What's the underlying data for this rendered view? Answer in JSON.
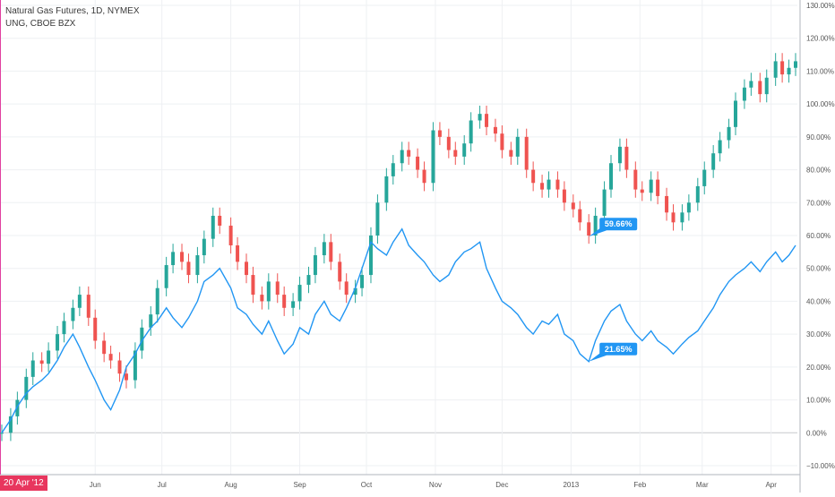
{
  "legend": {
    "line1": "Natural Gas Futures, 1D, NYMEX",
    "line2": "UNG, CBOE BZX"
  },
  "date_badge": "20 Apr '12",
  "chart_data": {
    "type": "line",
    "title": "Natural Gas Futures, 1D, NYMEX",
    "y_unit": "%",
    "ylim": [
      -10,
      130
    ],
    "y_ticks": [
      "130.00%",
      "120.00%",
      "110.00%",
      "100.00%",
      "90.00%",
      "80.00%",
      "70.00%",
      "60.00%",
      "50.00%",
      "40.00%",
      "30.00%",
      "20.00%",
      "10.00%",
      "0.00%",
      "−10.00%"
    ],
    "y_tick_values": [
      130,
      120,
      110,
      100,
      90,
      80,
      70,
      60,
      50,
      40,
      30,
      20,
      10,
      0,
      -10
    ],
    "x_tick_labels": [
      {
        "label": "Jun",
        "x": "2012-06-01"
      },
      {
        "label": "Jul",
        "x": "2012-07-01"
      },
      {
        "label": "Aug",
        "x": "2012-08-01"
      },
      {
        "label": "Sep",
        "x": "2012-09-01"
      },
      {
        "label": "Oct",
        "x": "2012-10-01"
      },
      {
        "label": "Nov",
        "x": "2012-11-01"
      },
      {
        "label": "Dec",
        "x": "2012-12-01"
      },
      {
        "label": "2013",
        "x": "2013-01-01"
      },
      {
        "label": "Feb",
        "x": "2013-02-01"
      },
      {
        "label": "Mar",
        "x": "2013-03-01"
      },
      {
        "label": "Apr",
        "x": "2013-04-01"
      }
    ],
    "xlim": [
      "2012-04-20",
      "2013-04-12"
    ],
    "grid": true,
    "colors": {
      "up": "#26a69a",
      "down": "#ef5350",
      "line": "#2196f3",
      "label_bg": "#2196f3",
      "grid": "#eef0f3",
      "zero": "#c7c9cd",
      "axis_text": "#555555",
      "start_marker": "#e040a0"
    },
    "series": [
      {
        "type": "candlestick",
        "close": [
          [
            "2012-04-20",
            0
          ],
          [
            "2012-04-24",
            5
          ],
          [
            "2012-04-27",
            10
          ],
          [
            "2012-05-01",
            17
          ],
          [
            "2012-05-04",
            22
          ],
          [
            "2012-05-08",
            21
          ],
          [
            "2012-05-11",
            25
          ],
          [
            "2012-05-15",
            30
          ],
          [
            "2012-05-18",
            34
          ],
          [
            "2012-05-22",
            38
          ],
          [
            "2012-05-25",
            42
          ],
          [
            "2012-05-29",
            35
          ],
          [
            "2012-06-01",
            28
          ],
          [
            "2012-06-05",
            24
          ],
          [
            "2012-06-08",
            22
          ],
          [
            "2012-06-12",
            18
          ],
          [
            "2012-06-15",
            16
          ],
          [
            "2012-06-19",
            25
          ],
          [
            "2012-06-22",
            32
          ],
          [
            "2012-06-26",
            36
          ],
          [
            "2012-06-29",
            44
          ],
          [
            "2012-07-03",
            51
          ],
          [
            "2012-07-06",
            55
          ],
          [
            "2012-07-10",
            52
          ],
          [
            "2012-07-13",
            48
          ],
          [
            "2012-07-17",
            54
          ],
          [
            "2012-07-20",
            59
          ],
          [
            "2012-07-24",
            66
          ],
          [
            "2012-07-27",
            63
          ],
          [
            "2012-08-01",
            57
          ],
          [
            "2012-08-04",
            52
          ],
          [
            "2012-08-08",
            48
          ],
          [
            "2012-08-11",
            42
          ],
          [
            "2012-08-15",
            40
          ],
          [
            "2012-08-18",
            46
          ],
          [
            "2012-08-22",
            42
          ],
          [
            "2012-08-25",
            38
          ],
          [
            "2012-08-29",
            40
          ],
          [
            "2012-09-01",
            45
          ],
          [
            "2012-09-05",
            48
          ],
          [
            "2012-09-08",
            54
          ],
          [
            "2012-09-12",
            58
          ],
          [
            "2012-09-15",
            52
          ],
          [
            "2012-09-19",
            46
          ],
          [
            "2012-09-22",
            42
          ],
          [
            "2012-09-26",
            44
          ],
          [
            "2012-09-29",
            48
          ],
          [
            "2012-10-03",
            60
          ],
          [
            "2012-10-06",
            70
          ],
          [
            "2012-10-10",
            78
          ],
          [
            "2012-10-13",
            82
          ],
          [
            "2012-10-17",
            86
          ],
          [
            "2012-10-20",
            84
          ],
          [
            "2012-10-24",
            80
          ],
          [
            "2012-10-27",
            76
          ],
          [
            "2012-10-31",
            92
          ],
          [
            "2012-11-03",
            90
          ],
          [
            "2012-11-07",
            86
          ],
          [
            "2012-11-10",
            84
          ],
          [
            "2012-11-14",
            88
          ],
          [
            "2012-11-17",
            95
          ],
          [
            "2012-11-21",
            97
          ],
          [
            "2012-11-24",
            93
          ],
          [
            "2012-11-28",
            91
          ],
          [
            "2012-12-01",
            86
          ],
          [
            "2012-12-05",
            84
          ],
          [
            "2012-12-08",
            90
          ],
          [
            "2012-12-12",
            80
          ],
          [
            "2012-12-15",
            76
          ],
          [
            "2012-12-19",
            74
          ],
          [
            "2012-12-22",
            77
          ],
          [
            "2012-12-26",
            74
          ],
          [
            "2012-12-29",
            70
          ],
          [
            "2013-01-02",
            68
          ],
          [
            "2013-01-05",
            64
          ],
          [
            "2013-01-09",
            60
          ],
          [
            "2013-01-12",
            66
          ],
          [
            "2013-01-16",
            74
          ],
          [
            "2013-01-19",
            82
          ],
          [
            "2013-01-23",
            87
          ],
          [
            "2013-01-26",
            80
          ],
          [
            "2013-01-30",
            74
          ],
          [
            "2013-02-02",
            73
          ],
          [
            "2013-02-06",
            77
          ],
          [
            "2013-02-09",
            72
          ],
          [
            "2013-02-13",
            67
          ],
          [
            "2013-02-16",
            64
          ],
          [
            "2013-02-20",
            67
          ],
          [
            "2013-02-23",
            70
          ],
          [
            "2013-02-27",
            75
          ],
          [
            "2013-03-02",
            80
          ],
          [
            "2013-03-06",
            85
          ],
          [
            "2013-03-09",
            89
          ],
          [
            "2013-03-13",
            93
          ],
          [
            "2013-03-16",
            101
          ],
          [
            "2013-03-20",
            105
          ],
          [
            "2013-03-23",
            107
          ],
          [
            "2013-03-27",
            103
          ],
          [
            "2013-03-30",
            108
          ],
          [
            "2013-04-03",
            113
          ],
          [
            "2013-04-06",
            109
          ],
          [
            "2013-04-09",
            111
          ],
          [
            "2013-04-12",
            113
          ]
        ]
      },
      {
        "type": "line",
        "values": [
          [
            "2012-04-20",
            0
          ],
          [
            "2012-04-24",
            4
          ],
          [
            "2012-04-27",
            8
          ],
          [
            "2012-05-01",
            12
          ],
          [
            "2012-05-04",
            14
          ],
          [
            "2012-05-08",
            16
          ],
          [
            "2012-05-11",
            18
          ],
          [
            "2012-05-15",
            22
          ],
          [
            "2012-05-18",
            26
          ],
          [
            "2012-05-22",
            30
          ],
          [
            "2012-05-25",
            26
          ],
          [
            "2012-05-29",
            20
          ],
          [
            "2012-06-01",
            16
          ],
          [
            "2012-06-05",
            10
          ],
          [
            "2012-06-08",
            7
          ],
          [
            "2012-06-12",
            13
          ],
          [
            "2012-06-15",
            20
          ],
          [
            "2012-06-19",
            24
          ],
          [
            "2012-06-22",
            28
          ],
          [
            "2012-06-26",
            32
          ],
          [
            "2012-06-29",
            34
          ],
          [
            "2012-07-03",
            38
          ],
          [
            "2012-07-06",
            35
          ],
          [
            "2012-07-10",
            32
          ],
          [
            "2012-07-13",
            35
          ],
          [
            "2012-07-17",
            40
          ],
          [
            "2012-07-20",
            46
          ],
          [
            "2012-07-24",
            48
          ],
          [
            "2012-07-27",
            50
          ],
          [
            "2012-08-01",
            44
          ],
          [
            "2012-08-04",
            38
          ],
          [
            "2012-08-08",
            36
          ],
          [
            "2012-08-11",
            33
          ],
          [
            "2012-08-15",
            30
          ],
          [
            "2012-08-18",
            34
          ],
          [
            "2012-08-22",
            28
          ],
          [
            "2012-08-25",
            24
          ],
          [
            "2012-08-29",
            27
          ],
          [
            "2012-09-01",
            32
          ],
          [
            "2012-09-05",
            30
          ],
          [
            "2012-09-08",
            36
          ],
          [
            "2012-09-12",
            40
          ],
          [
            "2012-09-15",
            36
          ],
          [
            "2012-09-19",
            34
          ],
          [
            "2012-09-22",
            38
          ],
          [
            "2012-09-26",
            44
          ],
          [
            "2012-09-29",
            50
          ],
          [
            "2012-10-03",
            58
          ],
          [
            "2012-10-06",
            56
          ],
          [
            "2012-10-10",
            54
          ],
          [
            "2012-10-13",
            58
          ],
          [
            "2012-10-17",
            62
          ],
          [
            "2012-10-20",
            57
          ],
          [
            "2012-10-24",
            54
          ],
          [
            "2012-10-27",
            52
          ],
          [
            "2012-10-31",
            48
          ],
          [
            "2012-11-03",
            46
          ],
          [
            "2012-11-07",
            48
          ],
          [
            "2012-11-10",
            52
          ],
          [
            "2012-11-14",
            55
          ],
          [
            "2012-11-17",
            56
          ],
          [
            "2012-11-21",
            58
          ],
          [
            "2012-11-24",
            50
          ],
          [
            "2012-11-28",
            44
          ],
          [
            "2012-12-01",
            40
          ],
          [
            "2012-12-05",
            38
          ],
          [
            "2012-12-08",
            36
          ],
          [
            "2012-12-12",
            32
          ],
          [
            "2012-12-15",
            30
          ],
          [
            "2012-12-19",
            34
          ],
          [
            "2012-12-22",
            33
          ],
          [
            "2012-12-26",
            36
          ],
          [
            "2012-12-29",
            30
          ],
          [
            "2013-01-02",
            28
          ],
          [
            "2013-01-05",
            24
          ],
          [
            "2013-01-09",
            21.65
          ],
          [
            "2013-01-12",
            28
          ],
          [
            "2013-01-16",
            34
          ],
          [
            "2013-01-19",
            37
          ],
          [
            "2013-01-23",
            39
          ],
          [
            "2013-01-26",
            34
          ],
          [
            "2013-01-30",
            30
          ],
          [
            "2013-02-02",
            28
          ],
          [
            "2013-02-06",
            31
          ],
          [
            "2013-02-09",
            28
          ],
          [
            "2013-02-13",
            26
          ],
          [
            "2013-02-16",
            24
          ],
          [
            "2013-02-20",
            27
          ],
          [
            "2013-02-23",
            29
          ],
          [
            "2013-02-27",
            31
          ],
          [
            "2013-03-02",
            34
          ],
          [
            "2013-03-06",
            38
          ],
          [
            "2013-03-09",
            42
          ],
          [
            "2013-03-13",
            46
          ],
          [
            "2013-03-16",
            48
          ],
          [
            "2013-03-20",
            50
          ],
          [
            "2013-03-23",
            52
          ],
          [
            "2013-03-27",
            49
          ],
          [
            "2013-03-30",
            52
          ],
          [
            "2013-04-03",
            55
          ],
          [
            "2013-04-06",
            52
          ],
          [
            "2013-04-09",
            54
          ],
          [
            "2013-04-12",
            57
          ]
        ]
      }
    ],
    "annotations": [
      {
        "text": "59.66%",
        "x": "2013-01-09",
        "y": 59.66
      },
      {
        "text": "21.65%",
        "x": "2013-01-09",
        "y": 21.65
      }
    ]
  }
}
